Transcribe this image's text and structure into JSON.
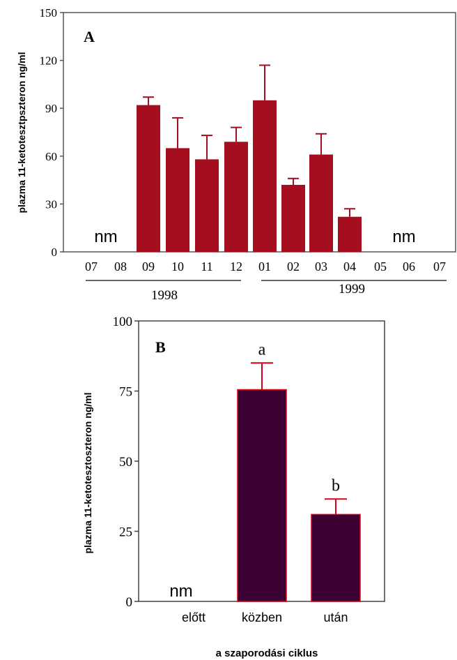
{
  "chart_data": [
    {
      "type": "bar",
      "panel_label": "A",
      "ylabel": "plazma 11-ketotesztpszteron ng/ml",
      "ylim": [
        0,
        150
      ],
      "yticks": [
        "0",
        "30",
        "60",
        "90",
        "120",
        "150"
      ],
      "categories": [
        "07",
        "08",
        "09",
        "10",
        "11",
        "12",
        "01",
        "02",
        "03",
        "04",
        "05",
        "06",
        "07"
      ],
      "values": [
        null,
        null,
        92,
        65,
        58,
        69,
        95,
        42,
        61,
        22,
        null,
        null,
        null
      ],
      "errors": [
        null,
        null,
        5,
        19,
        15,
        9,
        22,
        4,
        13,
        5,
        null,
        null,
        null
      ],
      "nm_label": "nm",
      "year_labels": [
        "1998",
        "1999"
      ],
      "bar_color": "#a50e1f"
    },
    {
      "type": "bar",
      "panel_label": "B",
      "ylabel": "plazma 11-ketotesztoszteron ng/ml",
      "xlabel": "a szaporodási ciklus",
      "ylim": [
        0,
        100
      ],
      "yticks": [
        "0",
        "25",
        "50",
        "75",
        "100"
      ],
      "categories": [
        "előtt",
        "közben",
        "után"
      ],
      "values": [
        null,
        75.5,
        31
      ],
      "errors": [
        null,
        9.5,
        5.5
      ],
      "letters": [
        "",
        "a",
        "b"
      ],
      "nm_label": "nm",
      "bar_color": "#3d0033",
      "edge_color": "#d9001b"
    }
  ]
}
